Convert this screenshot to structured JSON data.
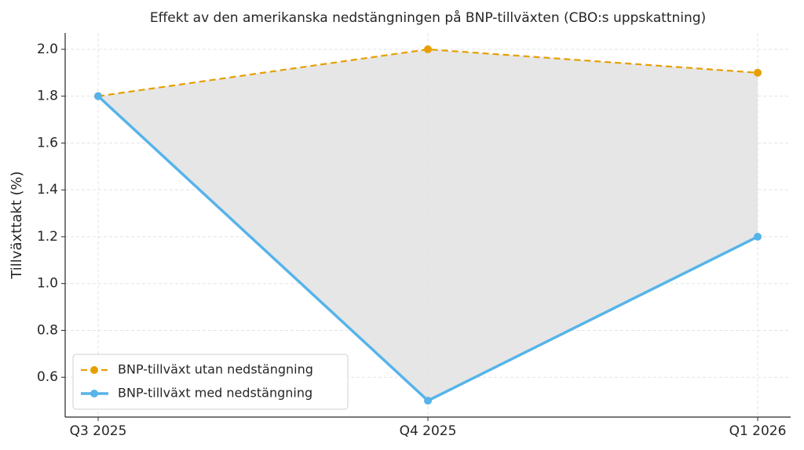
{
  "chart_data": {
    "type": "line",
    "title": "Effekt av den amerikanska nedstängningen på BNP-tillväxten (CBO:s uppskattning)",
    "y_label": "Tillväxttakt (%)",
    "categories": [
      "Q3 2025",
      "Q4 2025",
      "Q1 2026"
    ],
    "series": [
      {
        "name": "BNP-tillväxt utan nedstängning",
        "color": "#e69f00",
        "dashed": true,
        "values": [
          1.8,
          2.0,
          1.9
        ]
      },
      {
        "name": "BNP-tillväxt med nedstängning",
        "color": "#56b4e9",
        "dashed": false,
        "values": [
          1.8,
          0.5,
          1.2
        ]
      }
    ],
    "fill_between": true,
    "fill_color": "#e6e6e6",
    "ylim": [
      0.43,
      2.07
    ],
    "yticks": [
      0.6,
      0.8,
      {
        "value": 1,
        "label": "1.0"
      },
      1.2,
      1.4,
      1.6,
      1.8,
      {
        "value": 2,
        "label": "2.0"
      }
    ],
    "grid": true,
    "legend": "lower left"
  }
}
